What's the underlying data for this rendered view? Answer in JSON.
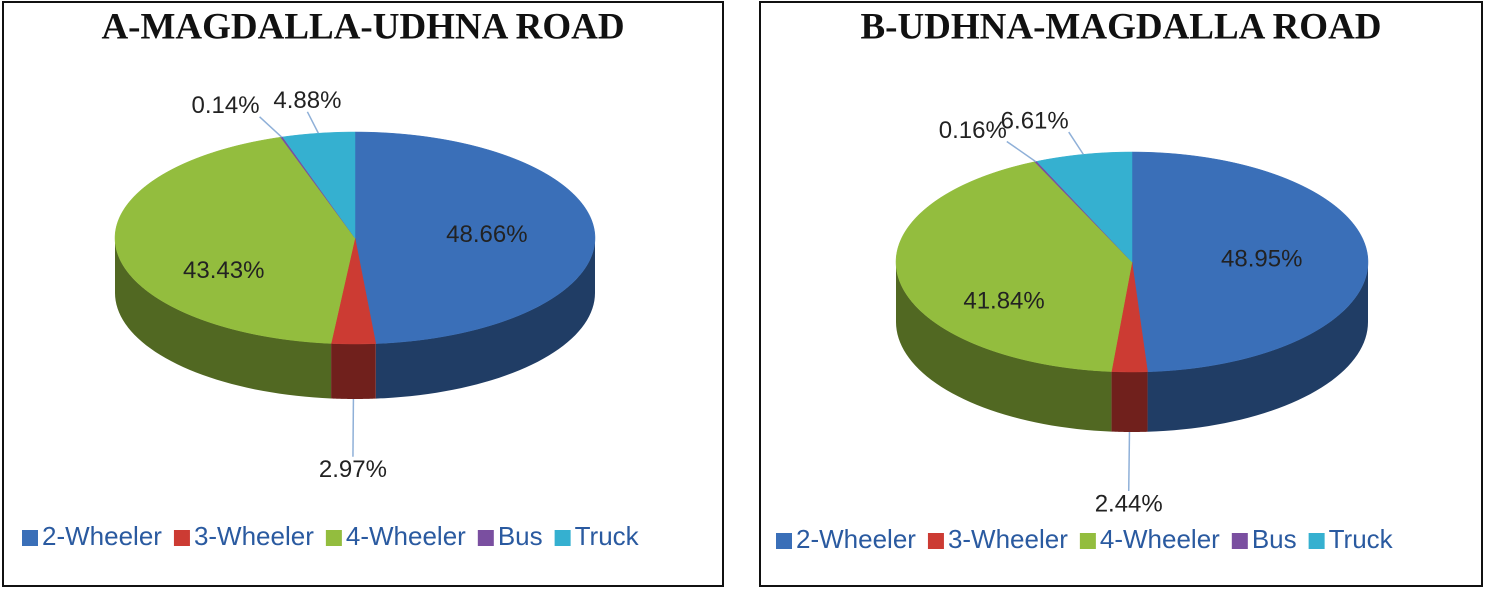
{
  "chart_data": [
    {
      "type": "pie",
      "title": "A-MAGDALLA-UDHNA ROAD",
      "categories": [
        "2-Wheeler",
        "3-Wheeler",
        "4-Wheeler",
        "Bus",
        "Truck"
      ],
      "values": [
        48.66,
        2.97,
        43.43,
        0.14,
        4.88
      ],
      "value_labels": [
        "48.66%",
        "2.97%",
        "43.43%",
        "0.14%",
        "4.88%"
      ],
      "colors": [
        "#3a6fb8",
        "#cc3b33",
        "#93bd3e",
        "#7a4fa0",
        "#35b0d0"
      ],
      "legend": "bottom"
    },
    {
      "type": "pie",
      "title": "B-UDHNA-MAGDALLA ROAD",
      "categories": [
        "2-Wheeler",
        "3-Wheeler",
        "4-Wheeler",
        "Bus",
        "Truck"
      ],
      "values": [
        48.95,
        2.44,
        41.84,
        0.16,
        6.61
      ],
      "value_labels": [
        "48.95%",
        "2.44%",
        "41.84%",
        "0.16%",
        "6.61%"
      ],
      "colors": [
        "#3a6fb8",
        "#cc3b33",
        "#93bd3e",
        "#7a4fa0",
        "#35b0d0"
      ],
      "legend": "bottom"
    }
  ]
}
